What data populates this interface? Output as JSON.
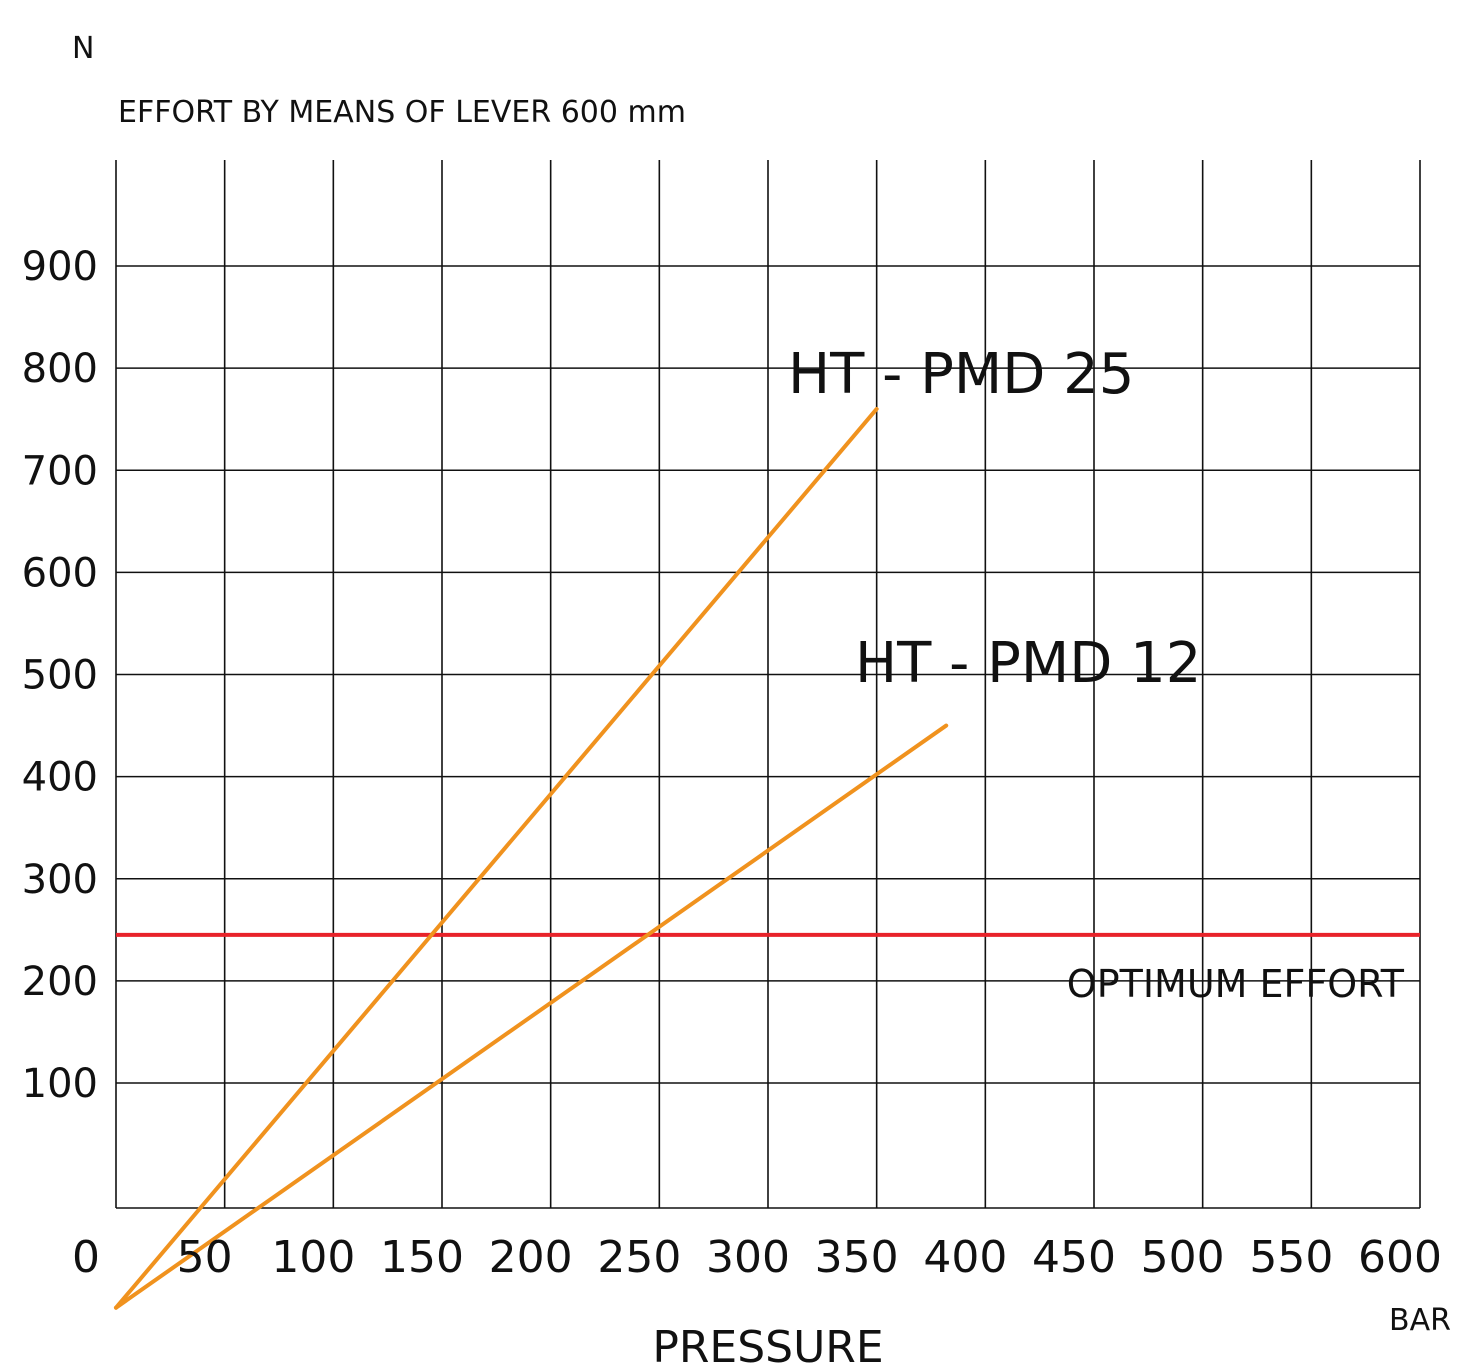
{
  "chart_data": {
    "type": "line",
    "title": "EFFORT BY MEANS OF LEVER 600 mm",
    "y_unit": "N",
    "xlabel": "PRESSURE",
    "x_unit": "BAR",
    "xlim": [
      0,
      600
    ],
    "ylim": [
      -120,
      920
    ],
    "x_ticks": [
      "0",
      "50",
      "100",
      "150",
      "200",
      "250",
      "300",
      "350",
      "400",
      "450",
      "500",
      "550",
      "600"
    ],
    "y_ticks": [
      "100",
      "200",
      "300",
      "400",
      "500",
      "600",
      "700",
      "800",
      "900"
    ],
    "grid": true,
    "series": [
      {
        "name": "HT - PMD 25",
        "x": [
          0,
          350
        ],
        "y": [
          -120,
          760
        ],
        "color": "#f0921e"
      },
      {
        "name": "HT - PMD 12",
        "x": [
          0,
          382
        ],
        "y": [
          -120,
          450
        ],
        "color": "#f0921e"
      }
    ],
    "reference_line": {
      "label": "OPTIMUM EFFORT",
      "y": 245,
      "color": "#e8232a"
    }
  }
}
